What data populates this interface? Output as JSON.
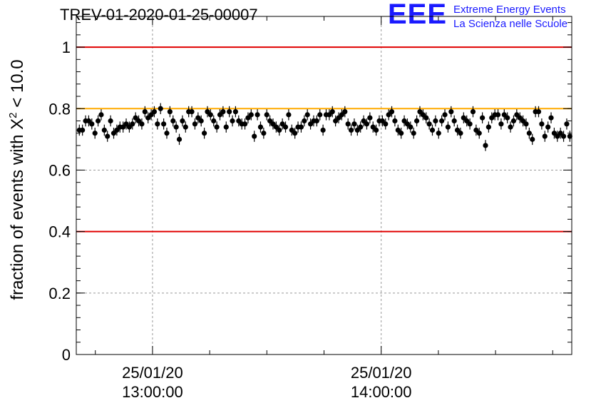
{
  "header": {
    "title": "TREV-01-2020-01-25-00007",
    "logo": {
      "mark": "EEE",
      "line1": "Extreme Energy Events",
      "line2": "La Scienza nelle Scuole",
      "color": "#1a1aff"
    }
  },
  "chart_data": {
    "type": "scatter",
    "title": "TREV-01-2020-01-25-00007",
    "ylabel_prefix": "fraction of events with ",
    "ylabel_symbol": "Χ",
    "ylabel_sup": "2",
    "ylabel_suffix": " < 10.0",
    "ylim": [
      0,
      1.1
    ],
    "yticks": [
      0,
      0.2,
      0.4,
      0.6,
      0.8,
      1
    ],
    "ytick_labels": [
      "0",
      "0.2",
      "0.4",
      "0.6",
      "0.8",
      "1"
    ],
    "xlim": [
      "12:40",
      "14:50"
    ],
    "xticks": [
      {
        "time": "13:00",
        "label_date": "25/01/20",
        "label_time": "13:00:00"
      },
      {
        "time": "14:00",
        "label_date": "25/01/20",
        "label_time": "14:00:00"
      }
    ],
    "grid": true,
    "reference_lines": [
      {
        "y": 1.0,
        "color": "#e00000"
      },
      {
        "y": 0.8,
        "color": "#ffaa00"
      },
      {
        "y": 0.4,
        "color": "#e00000"
      }
    ],
    "marker_color": "#000000",
    "series": [
      {
        "error": 0.018,
        "values": [
          0.73,
          0.73,
          0.76,
          0.76,
          0.75,
          0.72,
          0.76,
          0.78,
          0.73,
          0.71,
          0.76,
          0.72,
          0.73,
          0.74,
          0.74,
          0.75,
          0.74,
          0.75,
          0.77,
          0.76,
          0.75,
          0.79,
          0.77,
          0.78,
          0.79,
          0.75,
          0.8,
          0.75,
          0.72,
          0.79,
          0.76,
          0.74,
          0.7,
          0.76,
          0.74,
          0.79,
          0.79,
          0.75,
          0.77,
          0.76,
          0.72,
          0.79,
          0.78,
          0.76,
          0.74,
          0.78,
          0.79,
          0.74,
          0.79,
          0.76,
          0.79,
          0.76,
          0.75,
          0.75,
          0.77,
          0.78,
          0.71,
          0.78,
          0.74,
          0.72,
          0.78,
          0.76,
          0.75,
          0.74,
          0.73,
          0.75,
          0.74,
          0.78,
          0.73,
          0.72,
          0.74,
          0.74,
          0.76,
          0.78,
          0.75,
          0.76,
          0.76,
          0.78,
          0.73,
          0.78,
          0.78,
          0.79,
          0.76,
          0.77,
          0.78,
          0.79,
          0.75,
          0.73,
          0.75,
          0.73,
          0.74,
          0.76,
          0.75,
          0.77,
          0.74,
          0.73,
          0.76,
          0.76,
          0.75,
          0.78,
          0.79,
          0.76,
          0.73,
          0.72,
          0.76,
          0.75,
          0.74,
          0.72,
          0.76,
          0.79,
          0.78,
          0.77,
          0.75,
          0.73,
          0.76,
          0.72,
          0.76,
          0.78,
          0.74,
          0.79,
          0.76,
          0.73,
          0.72,
          0.77,
          0.76,
          0.75,
          0.79,
          0.73,
          0.72,
          0.77,
          0.68,
          0.74,
          0.77,
          0.78,
          0.78,
          0.75,
          0.78,
          0.77,
          0.74,
          0.76,
          0.78,
          0.77,
          0.76,
          0.75,
          0.72,
          0.7,
          0.79,
          0.79,
          0.75,
          0.71,
          0.74,
          0.77,
          0.72,
          0.71,
          0.72,
          0.71,
          0.75,
          0.71
        ]
      }
    ]
  }
}
